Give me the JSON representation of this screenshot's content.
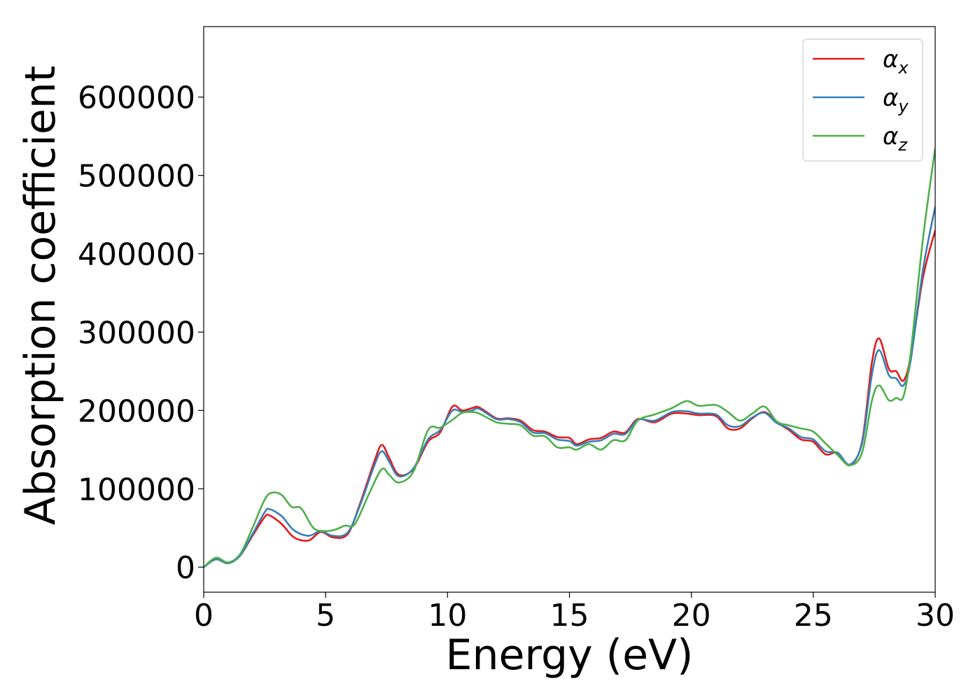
{
  "chart_data": {
    "type": "line",
    "title": "",
    "xlabel": "Energy (eV)",
    "ylabel": "Absorption coefficient",
    "xlim": [
      0,
      30
    ],
    "ylim": [
      -32000,
      690000
    ],
    "grid": false,
    "legend_position": "top-right",
    "x_ticks": [
      0,
      5,
      10,
      15,
      20,
      25,
      30
    ],
    "x_tick_labels": [
      "0",
      "5",
      "10",
      "15",
      "20",
      "25",
      "30"
    ],
    "y_ticks": [
      0,
      100000,
      200000,
      300000,
      400000,
      500000,
      600000
    ],
    "y_tick_labels": [
      "0",
      "100000",
      "200000",
      "300000",
      "400000",
      "500000",
      "600000"
    ],
    "series": [
      {
        "name": "αx",
        "symbol": "α",
        "subscript": "x",
        "color": "#e41a1c",
        "points": [
          [
            0,
            0
          ],
          [
            0.5,
            10000
          ],
          [
            1,
            5000
          ],
          [
            1.5,
            15000
          ],
          [
            2,
            40000
          ],
          [
            2.5,
            64000
          ],
          [
            2.7,
            66000
          ],
          [
            3.2,
            55000
          ],
          [
            3.7,
            38000
          ],
          [
            4.3,
            34000
          ],
          [
            4.8,
            45000
          ],
          [
            5.3,
            38000
          ],
          [
            5.9,
            42000
          ],
          [
            6.4,
            80000
          ],
          [
            7,
            135000
          ],
          [
            7.3,
            156000
          ],
          [
            7.6,
            140000
          ],
          [
            8,
            118000
          ],
          [
            8.6,
            125000
          ],
          [
            9.2,
            160000
          ],
          [
            9.7,
            172000
          ],
          [
            10.2,
            205000
          ],
          [
            10.6,
            200000
          ],
          [
            11,
            203000
          ],
          [
            11.3,
            204000
          ],
          [
            12,
            190000
          ],
          [
            12.5,
            190000
          ],
          [
            13,
            187000
          ],
          [
            13.5,
            175000
          ],
          [
            14,
            173000
          ],
          [
            14.5,
            166000
          ],
          [
            15,
            165000
          ],
          [
            15.3,
            157000
          ],
          [
            15.8,
            163000
          ],
          [
            16.3,
            165000
          ],
          [
            16.8,
            173000
          ],
          [
            17.3,
            172000
          ],
          [
            17.8,
            189000
          ],
          [
            18.5,
            185000
          ],
          [
            19.2,
            196000
          ],
          [
            19.8,
            196000
          ],
          [
            20.3,
            194000
          ],
          [
            21,
            193000
          ],
          [
            21.5,
            177000
          ],
          [
            22,
            177000
          ],
          [
            22.5,
            190000
          ],
          [
            23,
            198000
          ],
          [
            23.5,
            185000
          ],
          [
            24,
            175000
          ],
          [
            24.5,
            163000
          ],
          [
            25,
            160000
          ],
          [
            25.5,
            144000
          ],
          [
            26,
            146000
          ],
          [
            26.5,
            130000
          ],
          [
            27,
            160000
          ],
          [
            27.4,
            260000
          ],
          [
            27.7,
            292000
          ],
          [
            28.1,
            253000
          ],
          [
            28.4,
            250000
          ],
          [
            28.7,
            238000
          ],
          [
            29,
            270000
          ],
          [
            29.5,
            370000
          ],
          [
            30,
            430000
          ]
        ]
      },
      {
        "name": "αy",
        "symbol": "α",
        "subscript": "y",
        "color": "#377eb8",
        "points": [
          [
            0,
            0
          ],
          [
            0.5,
            10000
          ],
          [
            1,
            5000
          ],
          [
            1.5,
            15000
          ],
          [
            2,
            42000
          ],
          [
            2.5,
            70000
          ],
          [
            2.7,
            74000
          ],
          [
            3.2,
            65000
          ],
          [
            3.7,
            47000
          ],
          [
            4.3,
            40000
          ],
          [
            4.8,
            46000
          ],
          [
            5.3,
            40000
          ],
          [
            5.9,
            44000
          ],
          [
            6.4,
            78000
          ],
          [
            7,
            130000
          ],
          [
            7.3,
            148000
          ],
          [
            7.6,
            135000
          ],
          [
            8,
            116000
          ],
          [
            8.6,
            126000
          ],
          [
            9.2,
            163000
          ],
          [
            9.7,
            175000
          ],
          [
            10.2,
            200000
          ],
          [
            10.6,
            198000
          ],
          [
            11,
            200000
          ],
          [
            11.3,
            202000
          ],
          [
            12,
            189000
          ],
          [
            12.5,
            189000
          ],
          [
            13,
            185000
          ],
          [
            13.5,
            172000
          ],
          [
            14,
            171000
          ],
          [
            14.5,
            163000
          ],
          [
            15,
            161000
          ],
          [
            15.3,
            155000
          ],
          [
            15.8,
            160000
          ],
          [
            16.3,
            162000
          ],
          [
            16.8,
            170000
          ],
          [
            17.3,
            170000
          ],
          [
            17.8,
            188000
          ],
          [
            18.5,
            187000
          ],
          [
            19.2,
            198000
          ],
          [
            19.8,
            199000
          ],
          [
            20.3,
            196000
          ],
          [
            21,
            195000
          ],
          [
            21.5,
            181000
          ],
          [
            22,
            180000
          ],
          [
            22.5,
            191000
          ],
          [
            23,
            197000
          ],
          [
            23.5,
            184000
          ],
          [
            24,
            177000
          ],
          [
            24.5,
            166000
          ],
          [
            25,
            163000
          ],
          [
            25.5,
            148000
          ],
          [
            26,
            146000
          ],
          [
            26.5,
            131000
          ],
          [
            27,
            158000
          ],
          [
            27.4,
            245000
          ],
          [
            27.7,
            277000
          ],
          [
            28.1,
            245000
          ],
          [
            28.4,
            241000
          ],
          [
            28.7,
            232000
          ],
          [
            29,
            265000
          ],
          [
            29.5,
            380000
          ],
          [
            30,
            460000
          ]
        ]
      },
      {
        "name": "αz",
        "symbol": "α",
        "subscript": "z",
        "color": "#4daf4a",
        "points": [
          [
            0,
            0
          ],
          [
            0.5,
            12000
          ],
          [
            1,
            6000
          ],
          [
            1.5,
            17000
          ],
          [
            2,
            50000
          ],
          [
            2.5,
            86000
          ],
          [
            2.8,
            95000
          ],
          [
            3.2,
            92000
          ],
          [
            3.6,
            77000
          ],
          [
            4,
            75000
          ],
          [
            4.5,
            50000
          ],
          [
            5,
            46000
          ],
          [
            5.4,
            48000
          ],
          [
            5.8,
            53000
          ],
          [
            6.2,
            55000
          ],
          [
            6.8,
            95000
          ],
          [
            7.3,
            125000
          ],
          [
            7.6,
            118000
          ],
          [
            8,
            108000
          ],
          [
            8.6,
            122000
          ],
          [
            9.2,
            175000
          ],
          [
            9.7,
            178000
          ],
          [
            10.2,
            188000
          ],
          [
            10.6,
            197000
          ],
          [
            11,
            198000
          ],
          [
            11.3,
            196000
          ],
          [
            12,
            185000
          ],
          [
            12.5,
            183000
          ],
          [
            13,
            181000
          ],
          [
            13.5,
            168000
          ],
          [
            14,
            167000
          ],
          [
            14.5,
            153000
          ],
          [
            15,
            153000
          ],
          [
            15.3,
            150000
          ],
          [
            15.8,
            157000
          ],
          [
            16.3,
            150000
          ],
          [
            16.8,
            162000
          ],
          [
            17.3,
            162000
          ],
          [
            17.8,
            187000
          ],
          [
            18.5,
            195000
          ],
          [
            19.2,
            203000
          ],
          [
            19.8,
            212000
          ],
          [
            20.3,
            206000
          ],
          [
            21,
            207000
          ],
          [
            21.5,
            198000
          ],
          [
            22,
            187000
          ],
          [
            22.5,
            196000
          ],
          [
            23,
            205000
          ],
          [
            23.5,
            186000
          ],
          [
            24,
            181000
          ],
          [
            24.5,
            177000
          ],
          [
            25,
            173000
          ],
          [
            25.5,
            158000
          ],
          [
            26,
            143000
          ],
          [
            26.5,
            130000
          ],
          [
            27,
            146000
          ],
          [
            27.4,
            212000
          ],
          [
            27.7,
            232000
          ],
          [
            28.1,
            213000
          ],
          [
            28.4,
            216000
          ],
          [
            28.7,
            218000
          ],
          [
            29,
            275000
          ],
          [
            29.5,
            420000
          ],
          [
            30,
            535000
          ]
        ]
      }
    ]
  }
}
